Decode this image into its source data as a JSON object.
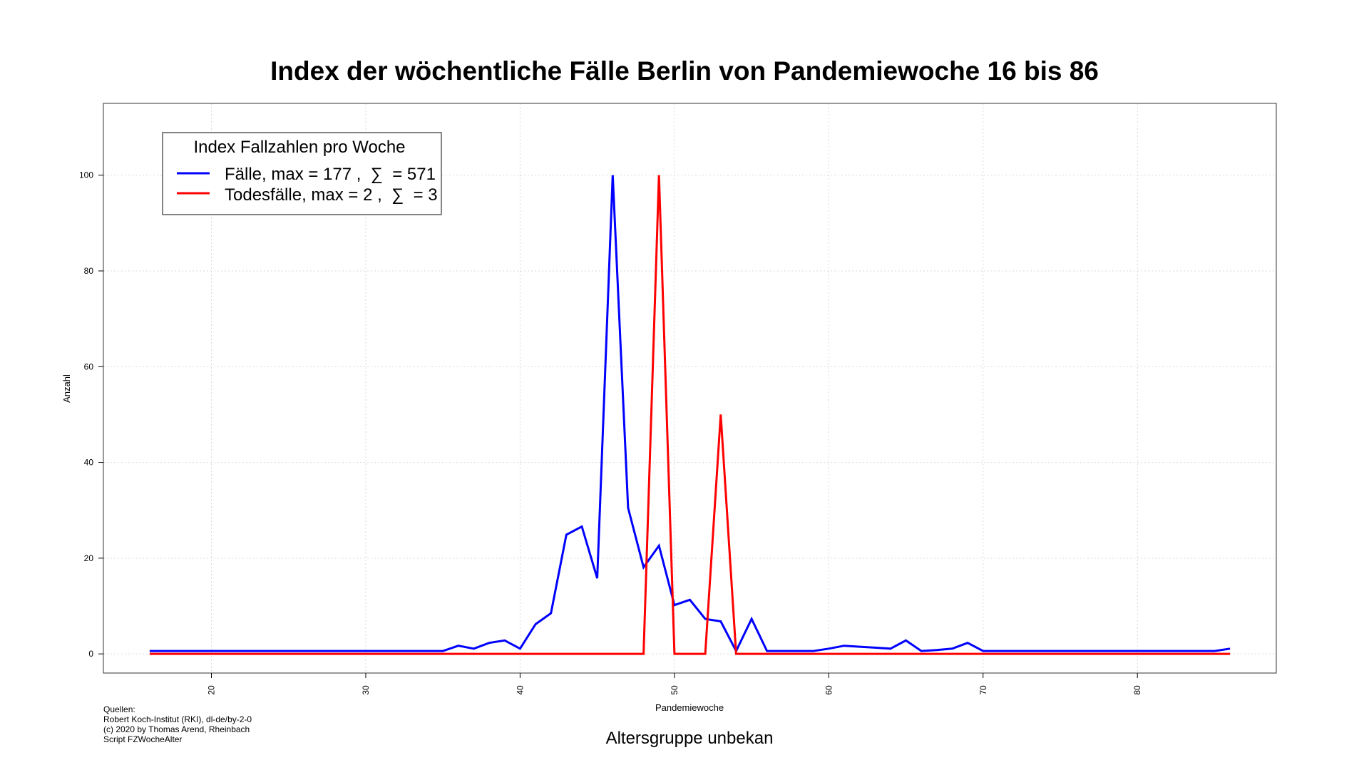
{
  "chart_data": {
    "type": "line",
    "title": "Index der wöchentliche Fälle Berlin von Pandemiewoche 16 bis 86",
    "xlabel": "Pandemiewoche",
    "ylabel": "Anzahl",
    "subtitle": "Altersgruppe unbekan",
    "xlim": [
      13,
      89
    ],
    "ylim": [
      -4,
      115
    ],
    "x_ticks": [
      20,
      30,
      40,
      50,
      60,
      70,
      80
    ],
    "y_ticks": [
      0,
      20,
      40,
      60,
      80,
      100
    ],
    "grid": true,
    "legend": {
      "title": "Index Fallzahlen pro Woche",
      "position": "top-left",
      "entries": [
        "Fälle, max = 177 ,  ∑  = 571",
        "Todesfälle, max = 2 ,  ∑  = 3"
      ]
    },
    "series": [
      {
        "color": "#0000ff",
        "x": [
          16,
          17,
          18,
          19,
          20,
          21,
          22,
          23,
          24,
          25,
          26,
          27,
          28,
          29,
          30,
          31,
          32,
          33,
          34,
          35,
          36,
          37,
          38,
          39,
          40,
          41,
          42,
          43,
          44,
          45,
          46,
          47,
          48,
          49,
          50,
          51,
          52,
          53,
          54,
          55,
          56,
          57,
          58,
          59,
          60,
          61,
          62,
          63,
          64,
          65,
          66,
          67,
          68,
          69,
          70,
          71,
          72,
          73,
          74,
          75,
          76,
          77,
          78,
          79,
          80,
          81,
          82,
          83,
          84,
          85,
          86
        ],
        "values": [
          0.6,
          0.6,
          0.6,
          0.6,
          0.6,
          0.6,
          0.6,
          0.6,
          0.6,
          0.6,
          0.6,
          0.6,
          0.6,
          0.6,
          0.6,
          0.6,
          0.6,
          0.6,
          0.6,
          0.6,
          1.7,
          1.1,
          2.3,
          2.8,
          1.1,
          6.2,
          8.5,
          24.9,
          26.6,
          15.8,
          100,
          30.5,
          18.1,
          22.6,
          10.2,
          11.3,
          7.3,
          6.8,
          0.6,
          7.3,
          0.6,
          0.6,
          0.6,
          0.6,
          1.1,
          1.7,
          1.5,
          1.3,
          1.1,
          2.8,
          0.6,
          0.8,
          1.1,
          2.3,
          0.6,
          0.6,
          0.6,
          0.6,
          0.6,
          0.6,
          0.6,
          0.6,
          0.6,
          0.6,
          0.6,
          0.6,
          0.6,
          0.6,
          0.6,
          0.6,
          1.1
        ]
      },
      {
        "color": "#ff0000",
        "x": [
          16,
          17,
          18,
          19,
          20,
          21,
          22,
          23,
          24,
          25,
          26,
          27,
          28,
          29,
          30,
          31,
          32,
          33,
          34,
          35,
          36,
          37,
          38,
          39,
          40,
          41,
          42,
          43,
          44,
          45,
          46,
          47,
          48,
          49,
          50,
          51,
          52,
          53,
          54,
          55,
          56,
          57,
          58,
          59,
          60,
          61,
          62,
          63,
          64,
          65,
          66,
          67,
          68,
          69,
          70,
          71,
          72,
          73,
          74,
          75,
          76,
          77,
          78,
          79,
          80,
          81,
          82,
          83,
          84,
          85,
          86
        ],
        "values": [
          0,
          0,
          0,
          0,
          0,
          0,
          0,
          0,
          0,
          0,
          0,
          0,
          0,
          0,
          0,
          0,
          0,
          0,
          0,
          0,
          0,
          0,
          0,
          0,
          0,
          0,
          0,
          0,
          0,
          0,
          0,
          0,
          0,
          100,
          0,
          0,
          0,
          50,
          0,
          0,
          0,
          0,
          0,
          0,
          0,
          0,
          0,
          0,
          0,
          0,
          0,
          0,
          0,
          0,
          0,
          0,
          0,
          0,
          0,
          0,
          0,
          0,
          0,
          0,
          0,
          0,
          0,
          0,
          0,
          0,
          0
        ]
      }
    ]
  },
  "sources": [
    "Quellen:",
    "Robert Koch-Institut (RKI), dl-de/by-2-0",
    "(c) 2020 by Thomas Arend, Rheinbach",
    "Script FZWocheAlter"
  ]
}
